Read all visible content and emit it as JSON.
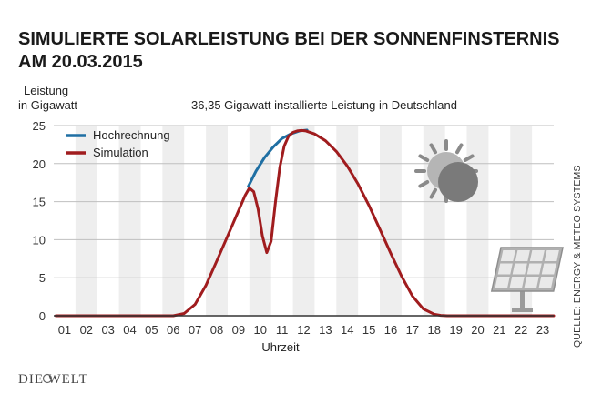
{
  "title_line1": "SIMULIERTE SOLARLEISTUNG BEI DER SONNENFINSTERNIS",
  "title_line2": "AM 20.03.2015",
  "ylabel_line1": "Leistung",
  "ylabel_line2": "in Gigawatt",
  "annotation": "36,35 Gigawatt installierte Leistung in Deutschland",
  "xlabel": "Uhrzeit",
  "source": "QUELLE: ENERGY & METEO SYSTEMS",
  "brand": "DIE WELT",
  "icons": [
    "eclipse-sun-icon",
    "solar-panel-icon",
    "die-welt-logo"
  ],
  "colors": {
    "hochrechnung": "#1f6fa3",
    "simulation": "#a01c1e",
    "stripe": "#eeeeee",
    "eclipse": "#8a8a8a"
  },
  "chart_data": {
    "type": "line",
    "title": "SIMULIERTE SOLARLEISTUNG BEI DER SONNENFINSTERNIS AM 20.03.2015",
    "xlabel": "Uhrzeit",
    "ylabel": "Leistung in Gigawatt",
    "xlim": [
      0.5,
      23.5
    ],
    "ylim": [
      0,
      25
    ],
    "yticks": [
      0,
      5,
      10,
      15,
      20,
      25
    ],
    "xtick_labels": [
      "01",
      "02",
      "03",
      "04",
      "05",
      "06",
      "07",
      "08",
      "09",
      "10",
      "11",
      "12",
      "13",
      "14",
      "15",
      "16",
      "17",
      "18",
      "19",
      "20",
      "21",
      "22",
      "23"
    ],
    "legend": {
      "placement": "top-left",
      "entries": [
        "Hochrechnung",
        "Simulation"
      ]
    },
    "series": [
      {
        "name": "Hochrechnung",
        "color": "#1f6fa3",
        "x": [
          9.45,
          9.8,
          10.2,
          10.6,
          11.0,
          11.4,
          11.8,
          12.15
        ],
        "y": [
          17.0,
          19.0,
          20.8,
          22.2,
          23.3,
          23.9,
          24.3,
          24.4
        ]
      },
      {
        "name": "Simulation",
        "color": "#a01c1e",
        "x": [
          0.6,
          6.0,
          6.5,
          7.0,
          7.5,
          8.0,
          8.5,
          9.0,
          9.3,
          9.5,
          9.7,
          9.9,
          10.1,
          10.3,
          10.5,
          10.7,
          10.9,
          11.1,
          11.3,
          11.5,
          11.7,
          11.9,
          12.1,
          12.5,
          13.0,
          13.5,
          14.0,
          14.5,
          15.0,
          15.5,
          16.0,
          16.5,
          17.0,
          17.5,
          18.0,
          18.3,
          18.6,
          23.5
        ],
        "y": [
          0,
          0,
          0.3,
          1.5,
          4.0,
          7.2,
          10.5,
          13.8,
          15.8,
          16.8,
          16.3,
          14.0,
          10.5,
          8.3,
          9.8,
          15.0,
          19.5,
          22.3,
          23.6,
          24.1,
          24.3,
          24.35,
          24.3,
          23.9,
          23.0,
          21.6,
          19.7,
          17.3,
          14.5,
          11.4,
          8.2,
          5.2,
          2.6,
          0.9,
          0.2,
          0.05,
          0,
          0
        ]
      }
    ]
  }
}
